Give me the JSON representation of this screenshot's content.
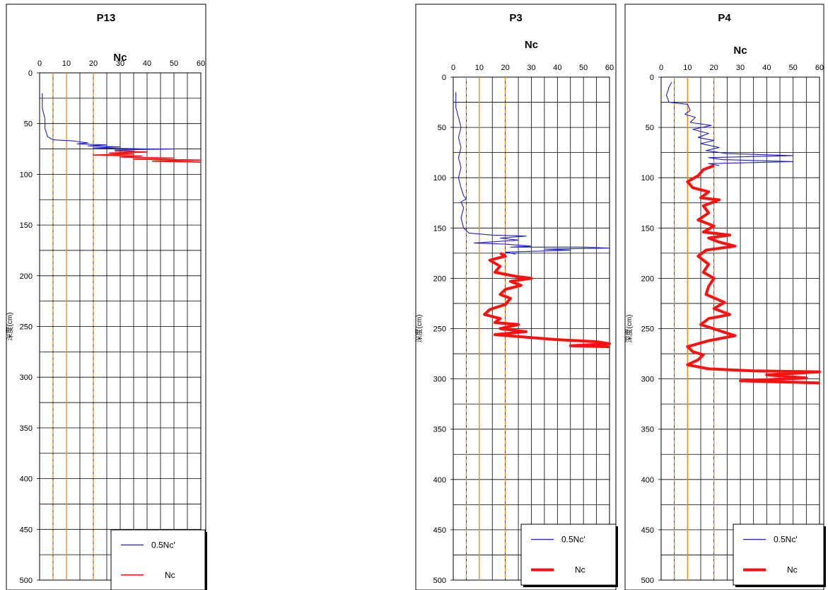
{
  "chart_data": [
    {
      "type": "line",
      "title": "P13",
      "xlabel": "Nc",
      "ylabel": "深度(cm)",
      "xlim": [
        0,
        60
      ],
      "ylim": [
        500,
        0
      ],
      "xticks": [
        "0",
        "10",
        "20",
        "30",
        "40",
        "50",
        "60"
      ],
      "yticks": [
        "0",
        "50",
        "100",
        "150",
        "200",
        "250",
        "300",
        "350",
        "400",
        "450",
        "500"
      ],
      "reference_lines": [
        {
          "x": 5,
          "style": "dashed"
        },
        {
          "x": 10,
          "style": "solid"
        },
        {
          "x": 20,
          "style": "dashed"
        }
      ],
      "legend": {
        "position": "bottom-right",
        "entries": [
          "0.5Nc'",
          "Nc"
        ]
      },
      "series": [
        {
          "name": "0.5Nc'",
          "color": "#1f1fd6",
          "points": [
            [
              1,
              20
            ],
            [
              1,
              35
            ],
            [
              2,
              45
            ],
            [
              2,
              55
            ],
            [
              3,
              63
            ],
            [
              5,
              66
            ],
            [
              12,
              67
            ],
            [
              15,
              68
            ],
            [
              18,
              69
            ],
            [
              14,
              70
            ],
            [
              25,
              71
            ],
            [
              18,
              72
            ],
            [
              30,
              73
            ],
            [
              20,
              74
            ],
            [
              40,
              75
            ],
            [
              50,
              75
            ],
            [
              28,
              76
            ],
            [
              35,
              77
            ]
          ]
        },
        {
          "name": "Nc",
          "color": "#ff1010",
          "points": [
            [
              28,
              77
            ],
            [
              40,
              78
            ],
            [
              26,
              79
            ],
            [
              35,
              80
            ],
            [
              20,
              81
            ],
            [
              38,
              82
            ],
            [
              30,
              83
            ],
            [
              50,
              84
            ],
            [
              35,
              85
            ],
            [
              60,
              86
            ],
            [
              42,
              87
            ],
            [
              60,
              88
            ]
          ]
        }
      ]
    },
    {
      "type": "line",
      "title": "P3",
      "xlabel": "Nc",
      "ylabel": "深度(cm)",
      "xlim": [
        0,
        60
      ],
      "ylim": [
        500,
        0
      ],
      "xticks": [
        "0",
        "10",
        "20",
        "30",
        "40",
        "50",
        "60"
      ],
      "yticks": [
        "0",
        "50",
        "100",
        "150",
        "200",
        "250",
        "300",
        "350",
        "400",
        "450",
        "500"
      ],
      "reference_lines": [
        {
          "x": 5,
          "style": "dashed"
        },
        {
          "x": 10,
          "style": "solid"
        },
        {
          "x": 20,
          "style": "dashed"
        }
      ],
      "legend": {
        "position": "bottom-right",
        "entries": [
          "0.5Nc'",
          "Nc"
        ]
      },
      "series": [
        {
          "name": "0.5Nc'",
          "color": "#1f1fd6",
          "points": [
            [
              1,
              15
            ],
            [
              1,
              30
            ],
            [
              2,
              40
            ],
            [
              3,
              50
            ],
            [
              2,
              60
            ],
            [
              3,
              70
            ],
            [
              2,
              80
            ],
            [
              3,
              90
            ],
            [
              2,
              100
            ],
            [
              3,
              110
            ],
            [
              4,
              118
            ],
            [
              5,
              121
            ],
            [
              3,
              124
            ],
            [
              4,
              130
            ],
            [
              3,
              140
            ],
            [
              4,
              150
            ],
            [
              6,
              155
            ],
            [
              15,
              157
            ],
            [
              28,
              158
            ],
            [
              18,
              160
            ],
            [
              25,
              162
            ],
            [
              8,
              165
            ],
            [
              20,
              166
            ],
            [
              30,
              168
            ],
            [
              22,
              169
            ],
            [
              50,
              169
            ],
            [
              60,
              170
            ],
            [
              35,
              171
            ],
            [
              45,
              172
            ],
            [
              20,
              174
            ],
            [
              24,
              176
            ]
          ]
        },
        {
          "name": "Nc",
          "color": "#ff1010",
          "points": [
            [
              18,
              175
            ],
            [
              20,
              178
            ],
            [
              14,
              182
            ],
            [
              18,
              188
            ],
            [
              16,
              194
            ],
            [
              24,
              198
            ],
            [
              30,
              200
            ],
            [
              22,
              203
            ],
            [
              26,
              207
            ],
            [
              20,
              211
            ],
            [
              18,
              216
            ],
            [
              22,
              220
            ],
            [
              20,
              226
            ],
            [
              14,
              231
            ],
            [
              12,
              236
            ],
            [
              18,
              240
            ],
            [
              16,
              244
            ],
            [
              25,
              246
            ],
            [
              18,
              250
            ],
            [
              28,
              253
            ],
            [
              16,
              256
            ],
            [
              30,
              259
            ],
            [
              40,
              261
            ],
            [
              55,
              263
            ],
            [
              60,
              265
            ],
            [
              45,
              267
            ],
            [
              60,
              268
            ]
          ]
        }
      ]
    },
    {
      "type": "line",
      "title": "P4",
      "xlabel": "Nc",
      "ylabel": "深度(cm)",
      "xlim": [
        0,
        60
      ],
      "ylim": [
        500,
        0
      ],
      "xticks": [
        "0",
        "10",
        "20",
        "30",
        "40",
        "50",
        "60"
      ],
      "yticks": [
        "0",
        "50",
        "100",
        "150",
        "200",
        "250",
        "300",
        "350",
        "400",
        "450",
        "500"
      ],
      "reference_lines": [
        {
          "x": 5,
          "style": "dashed"
        },
        {
          "x": 10,
          "style": "solid"
        },
        {
          "x": 20,
          "style": "dashed"
        }
      ],
      "legend": {
        "position": "bottom-right",
        "entries": [
          "0.5Nc'",
          "Nc"
        ]
      },
      "series": [
        {
          "name": "0.5Nc'",
          "color": "#1f1fd6",
          "points": [
            [
              4,
              5
            ],
            [
              3,
              10
            ],
            [
              2,
              18
            ],
            [
              3,
              25
            ],
            [
              10,
              27
            ],
            [
              11,
              33
            ],
            [
              9,
              37
            ],
            [
              13,
              40
            ],
            [
              11,
              45
            ],
            [
              19,
              48
            ],
            [
              12,
              52
            ],
            [
              18,
              56
            ],
            [
              14,
              60
            ],
            [
              20,
              63
            ],
            [
              15,
              66
            ],
            [
              22,
              70
            ],
            [
              17,
              73
            ],
            [
              25,
              76
            ],
            [
              50,
              78
            ],
            [
              18,
              80
            ],
            [
              23,
              82
            ],
            [
              50,
              84
            ],
            [
              18,
              86
            ],
            [
              22,
              88
            ]
          ]
        },
        {
          "name": "Nc",
          "color": "#ff1010",
          "points": [
            [
              20,
              88
            ],
            [
              16,
              92
            ],
            [
              14,
              98
            ],
            [
              10,
              104
            ],
            [
              12,
              110
            ],
            [
              18,
              114
            ],
            [
              15,
              120
            ],
            [
              22,
              122
            ],
            [
              16,
              128
            ],
            [
              18,
              135
            ],
            [
              14,
              142
            ],
            [
              20,
              148
            ],
            [
              16,
              154
            ],
            [
              26,
              157
            ],
            [
              18,
              160
            ],
            [
              22,
              164
            ],
            [
              28,
              168
            ],
            [
              17,
              172
            ],
            [
              14,
              178
            ],
            [
              18,
              186
            ],
            [
              16,
              194
            ],
            [
              20,
              200
            ],
            [
              18,
              208
            ],
            [
              17,
              216
            ],
            [
              24,
              224
            ],
            [
              20,
              230
            ],
            [
              26,
              236
            ],
            [
              18,
              240
            ],
            [
              15,
              246
            ],
            [
              22,
              252
            ],
            [
              28,
              257
            ],
            [
              18,
              262
            ],
            [
              10,
              268
            ],
            [
              12,
              273
            ],
            [
              16,
              276
            ],
            [
              14,
              281
            ],
            [
              10,
              286
            ],
            [
              18,
              290
            ],
            [
              35,
              292
            ],
            [
              60,
              293
            ],
            [
              40,
              296
            ],
            [
              55,
              299
            ],
            [
              30,
              302
            ],
            [
              60,
              304
            ]
          ]
        }
      ]
    }
  ]
}
